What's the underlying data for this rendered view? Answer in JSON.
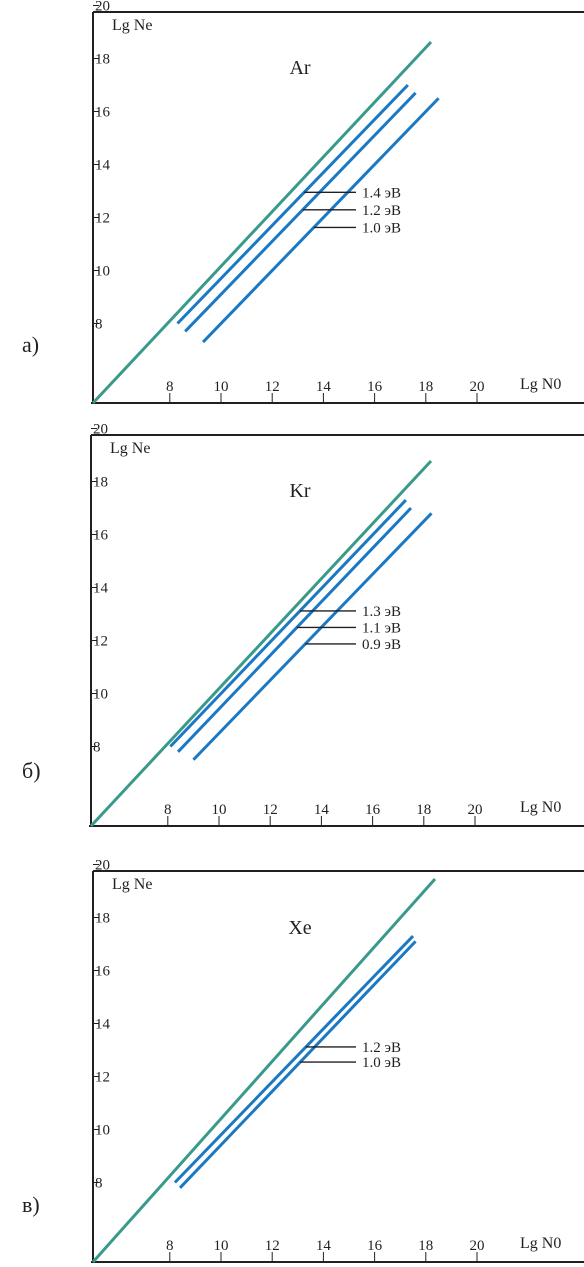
{
  "chart_data": [
    {
      "type": "line",
      "panel_label": "а)",
      "title": "Ar",
      "xlabel": "Lg N0",
      "ylabel": "Lg Ne",
      "x_ticks": [
        "8",
        "10",
        "12",
        "14",
        "16",
        "18",
        "20"
      ],
      "y_ticks": [
        "8",
        "10",
        "12",
        "14",
        "16",
        "18",
        "20"
      ],
      "reference_line": {
        "x": [
          5,
          19
        ],
        "y": [
          5,
          19
        ]
      },
      "series": [
        {
          "name": "1.4 эВ",
          "x": [
            8.3,
            17.3
          ],
          "y": [
            8.0,
            17.0
          ]
        },
        {
          "name": "1.2 эВ",
          "x": [
            8.6,
            17.6
          ],
          "y": [
            7.7,
            16.7
          ]
        },
        {
          "name": "1.0 эВ",
          "x": [
            9.3,
            18.5
          ],
          "y": [
            7.3,
            16.5
          ]
        }
      ],
      "annotations": [
        "1.4 эВ",
        "1.2 эВ",
        "1.0 эВ"
      ],
      "colors": {
        "reference": "#3a9a8a",
        "series": "#1b79c4"
      }
    },
    {
      "type": "line",
      "panel_label": "б)",
      "title": "Kr",
      "xlabel": "Lg N0",
      "ylabel": "Lg Ne",
      "x_ticks": [
        "8",
        "10",
        "12",
        "14",
        "16",
        "18",
        "20"
      ],
      "y_ticks": [
        "8",
        "10",
        "12",
        "14",
        "16",
        "18",
        "20"
      ],
      "reference_line": {
        "x": [
          5,
          19
        ],
        "y": [
          5,
          19
        ]
      },
      "series": [
        {
          "name": "1.3 эВ",
          "x": [
            8.1,
            17.3
          ],
          "y": [
            8.0,
            17.3
          ]
        },
        {
          "name": "1.1 эВ",
          "x": [
            8.4,
            17.5
          ],
          "y": [
            7.8,
            17.0
          ]
        },
        {
          "name": "0.9 эВ",
          "x": [
            9.0,
            18.3
          ],
          "y": [
            7.5,
            16.8
          ]
        }
      ],
      "annotations": [
        "1.3 эВ",
        "1.1 эВ",
        "0.9 эВ"
      ],
      "colors": {
        "reference": "#3a9a8a",
        "series": "#1b79c4"
      }
    },
    {
      "type": "line",
      "panel_label": "в)",
      "title": "Xe",
      "xlabel": "Lg N0",
      "ylabel": "Lg Ne",
      "x_ticks": [
        "8",
        "10",
        "12",
        "14",
        "16",
        "18",
        "20"
      ],
      "y_ticks": [
        "8",
        "10",
        "12",
        "14",
        "16",
        "18",
        "20"
      ],
      "reference_line": {
        "x": [
          5,
          19
        ],
        "y": [
          5,
          19
        ]
      },
      "series": [
        {
          "name": "1.2 эВ",
          "x": [
            8.2,
            17.5
          ],
          "y": [
            8.0,
            17.3
          ]
        },
        {
          "name": "1.0 эВ",
          "x": [
            8.4,
            17.6
          ],
          "y": [
            7.8,
            17.1
          ]
        }
      ],
      "annotations": [
        "1.2 эВ",
        "1.0 эВ"
      ],
      "colors": {
        "reference": "#3a9a8a",
        "series": "#1b79c4"
      }
    }
  ]
}
